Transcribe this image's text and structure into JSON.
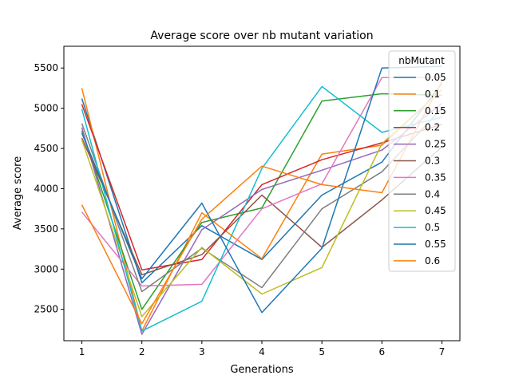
{
  "chart_data": {
    "type": "line",
    "title": "Average score over nb mutant variation",
    "xlabel": "Generations",
    "ylabel": "Average score",
    "x": [
      1,
      2,
      3,
      4,
      5,
      6,
      7
    ],
    "xlim": [
      0.7,
      7.3
    ],
    "ylim": [
      2110,
      5770
    ],
    "xticks": [
      1,
      2,
      3,
      4,
      5,
      6,
      7
    ],
    "yticks": [
      2500,
      3000,
      3500,
      4000,
      4500,
      5000,
      5500
    ],
    "grid": false,
    "legend": {
      "title": "nbMutant",
      "placement": "top-right"
    },
    "series": [
      {
        "name": "0.05",
        "color": "#1f77b4",
        "values": [
          5120,
          2830,
          3540,
          3120,
          3920,
          4330,
          5310
        ]
      },
      {
        "name": "0.1",
        "color": "#ff7f0e",
        "values": [
          5250,
          2230,
          3700,
          3130,
          4430,
          4540,
          5230
        ]
      },
      {
        "name": "0.15",
        "color": "#2ca02c",
        "values": [
          4720,
          2500,
          3580,
          3760,
          5090,
          5180,
          5160
        ]
      },
      {
        "name": "0.2",
        "color": "#d62728",
        "values": [
          5050,
          2990,
          3120,
          4050,
          4360,
          4570,
          4800
        ]
      },
      {
        "name": "0.25",
        "color": "#9467bd",
        "values": [
          4760,
          2190,
          3490,
          3990,
          4230,
          4480,
          5060
        ]
      },
      {
        "name": "0.3",
        "color": "#8c564b",
        "values": [
          4630,
          2930,
          3180,
          3920,
          3270,
          3860,
          4520
        ]
      },
      {
        "name": "0.35",
        "color": "#e377c2",
        "values": [
          3710,
          2790,
          2810,
          3750,
          4060,
          5380,
          5380
        ]
      },
      {
        "name": "0.4",
        "color": "#7f7f7f",
        "values": [
          4810,
          2720,
          3260,
          2770,
          3750,
          4210,
          5000
        ]
      },
      {
        "name": "0.45",
        "color": "#bcbd22",
        "values": [
          4610,
          2410,
          3270,
          2690,
          3020,
          4560,
          5230
        ]
      },
      {
        "name": "0.5",
        "color": "#17becf",
        "values": [
          4990,
          2230,
          2600,
          4250,
          5270,
          4700,
          4890
        ]
      },
      {
        "name": "0.55",
        "color": "#1f77b4",
        "values": [
          4690,
          2880,
          3820,
          2460,
          3260,
          5500,
          5520
        ]
      },
      {
        "name": "0.6",
        "color": "#ff7f0e",
        "values": [
          3800,
          2320,
          3620,
          4280,
          4050,
          3950,
          5330
        ]
      }
    ]
  }
}
